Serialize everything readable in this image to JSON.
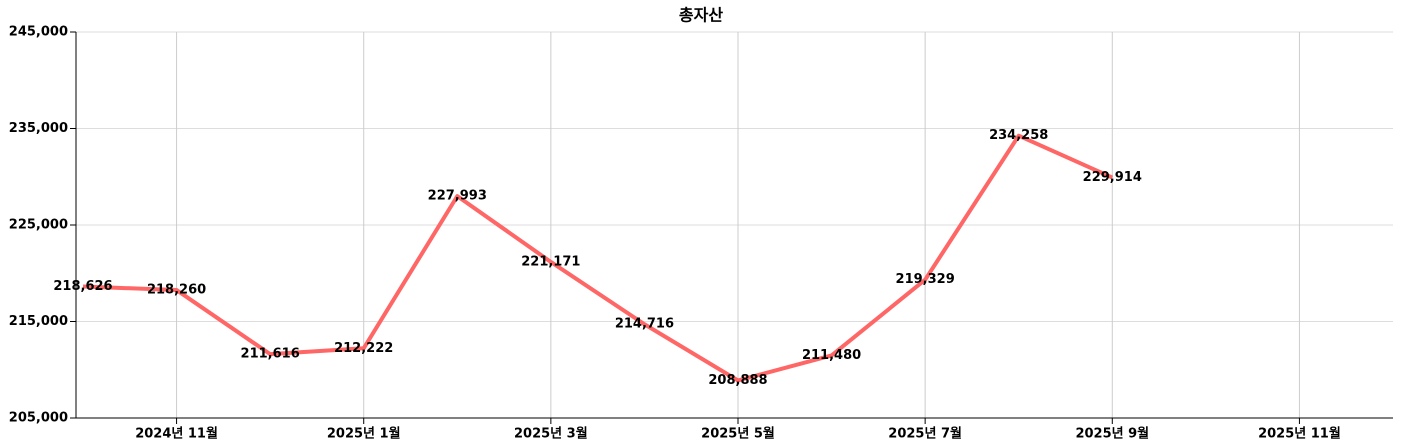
{
  "chart_data": {
    "type": "line",
    "title": "총자산",
    "x": [
      "2024-10",
      "2024-11",
      "2024-12",
      "2025-01",
      "2025-02",
      "2025-03",
      "2025-04",
      "2025-05",
      "2025-06",
      "2025-07",
      "2025-08",
      "2025-09"
    ],
    "series": [
      {
        "name": "총자산",
        "color": "#ff6666",
        "values": [
          218626,
          218260,
          211616,
          212222,
          227993,
          221171,
          214716,
          208888,
          211480,
          219329,
          234258,
          229914
        ],
        "value_labels": [
          "218,626",
          "218,260",
          "211,616",
          "212,222",
          "227,993",
          "221,171",
          "214,716",
          "208,888",
          "211,480",
          "219,329",
          "234,258",
          "229,914"
        ]
      }
    ],
    "xlim": [
      "2024-10",
      "2025-12"
    ],
    "xticks": [
      {
        "value": "2024-11",
        "label": "2024년 11월"
      },
      {
        "value": "2025-01",
        "label": "2025년 1월"
      },
      {
        "value": "2025-03",
        "label": "2025년 3월"
      },
      {
        "value": "2025-05",
        "label": "2025년 5월"
      },
      {
        "value": "2025-07",
        "label": "2025년 7월"
      },
      {
        "value": "2025-09",
        "label": "2025년 9월"
      },
      {
        "value": "2025-11",
        "label": "2025년 11월"
      }
    ],
    "ylim": [
      205000,
      245000
    ],
    "yticks": [
      {
        "value": 205000,
        "label": "205,000"
      },
      {
        "value": 215000,
        "label": "215,000"
      },
      {
        "value": 225000,
        "label": "225,000"
      },
      {
        "value": 235000,
        "label": "235,000"
      },
      {
        "value": 245000,
        "label": "245,000"
      }
    ],
    "grid": true
  }
}
